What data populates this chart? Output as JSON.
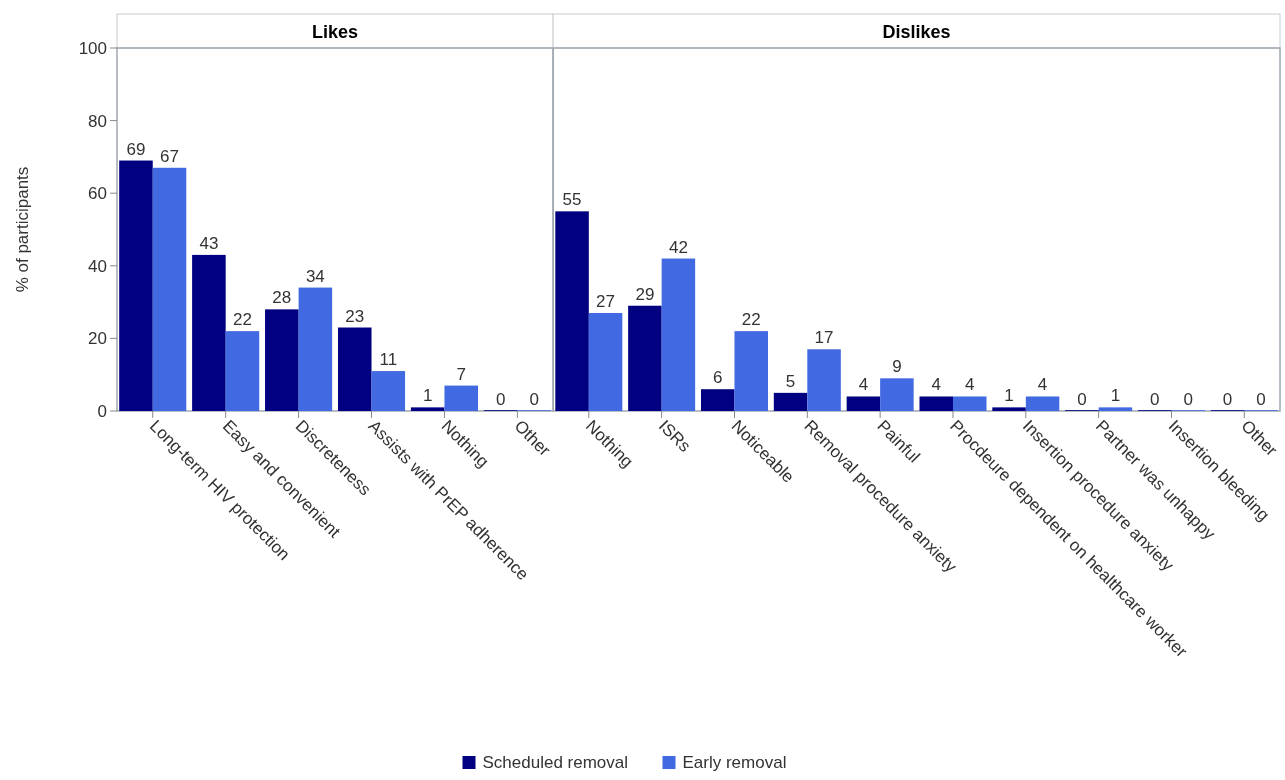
{
  "chart_data": [
    {
      "type": "bar",
      "title": "Likes",
      "ylabel": "% of participants",
      "categories": [
        "Long-term HIV protection",
        "Easy and convenient",
        "Discreteness",
        "Assists with PrEP adherence",
        "Nothing",
        "Other"
      ],
      "series": [
        {
          "name": "Scheduled removal",
          "color": "#000080",
          "values": [
            69,
            43,
            28,
            23,
            1,
            0
          ]
        },
        {
          "name": "Early removal",
          "color": "#4169e1",
          "values": [
            67,
            22,
            34,
            11,
            7,
            0
          ]
        }
      ],
      "ylim": [
        0,
        100
      ],
      "yticks": [
        0,
        20,
        40,
        60,
        80,
        100
      ],
      "data_labels": true,
      "legend": "bottom",
      "grid": false
    },
    {
      "type": "bar",
      "title": "Dislikes",
      "categories": [
        "Nothing",
        "ISRs",
        "Noticeable",
        "Removal procedure anxiety",
        "Painful",
        "Procdeure dependent on healthcare worker",
        "Insertion procedure anxiety",
        "Partner was unhappy",
        "Insertion bleeding",
        "Other"
      ],
      "series": [
        {
          "name": "Scheduled removal",
          "color": "#000080",
          "values": [
            55,
            29,
            6,
            5,
            4,
            4,
            1,
            0,
            0,
            0
          ]
        },
        {
          "name": "Early removal",
          "color": "#4169e1",
          "values": [
            27,
            42,
            22,
            17,
            9,
            4,
            4,
            1,
            0,
            0
          ]
        }
      ],
      "ylim": [
        0,
        100
      ],
      "data_labels": true,
      "tick_labels": "x",
      "grid": false
    }
  ]
}
